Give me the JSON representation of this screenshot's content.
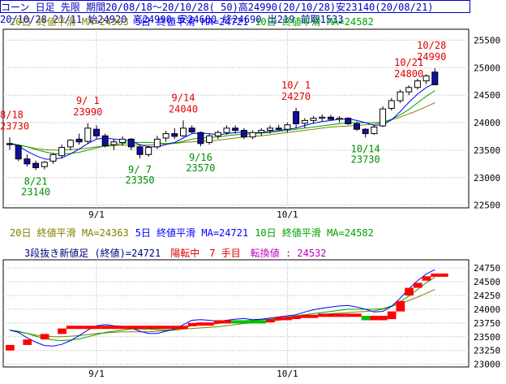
{
  "header": {
    "line1": "コーン 日足 先限 期間20/08/18～20/10/28( 50)高24990(20/10/28)安23140(20/08/21)",
    "line2": "20/10/28 21/11 始24920 高24990 安24680 終24690 出219 前取1533"
  },
  "colors": {
    "up": "#ffffff",
    "down": "#1010a0",
    "ma20": "#808000",
    "ma5": "#0000ff",
    "ma10": "#00a000",
    "annotation_high": "#e00000",
    "annotation_low": "#009000",
    "frame": "#000000",
    "brick_up": "#ff0000",
    "brick_down": "#00c000",
    "brick_flat": "#ff0000"
  },
  "chart_data": [
    {
      "type": "candlestick",
      "legend": [
        {
          "label": "20日 終値平滑 MA=24363",
          "color": "#808000"
        },
        {
          "label": "5日 終値平滑 MA=24721",
          "color": "#0000ff"
        },
        {
          "label": "10日 終値平滑 MA=24582",
          "color": "#00a000"
        }
      ],
      "x_ticks": [
        {
          "index": 10,
          "label": "9/1"
        },
        {
          "index": 32,
          "label": "10/1"
        }
      ],
      "y_ticks": [
        22500,
        23000,
        23500,
        24000,
        24500,
        25000,
        25500
      ],
      "ylim": [
        22450,
        25700
      ],
      "grid": true,
      "ohlc": [
        [
          23620,
          23730,
          23510,
          23600
        ],
        [
          23580,
          23600,
          23300,
          23340
        ],
        [
          23340,
          23420,
          23200,
          23250
        ],
        [
          23260,
          23310,
          23140,
          23180
        ],
        [
          23200,
          23300,
          23150,
          23280
        ],
        [
          23300,
          23450,
          23250,
          23420
        ],
        [
          23400,
          23600,
          23350,
          23550
        ],
        [
          23560,
          23700,
          23500,
          23680
        ],
        [
          23700,
          23800,
          23600,
          23650
        ],
        [
          23660,
          23990,
          23620,
          23900
        ],
        [
          23880,
          23950,
          23700,
          23760
        ],
        [
          23760,
          23800,
          23550,
          23580
        ],
        [
          23600,
          23700,
          23500,
          23650
        ],
        [
          23640,
          23750,
          23580,
          23700
        ],
        [
          23700,
          23720,
          23500,
          23560
        ],
        [
          23560,
          23600,
          23350,
          23420
        ],
        [
          23420,
          23580,
          23380,
          23550
        ],
        [
          23560,
          23760,
          23520,
          23700
        ],
        [
          23720,
          23850,
          23650,
          23800
        ],
        [
          23800,
          23900,
          23700,
          23750
        ],
        [
          23760,
          24040,
          23740,
          23900
        ],
        [
          23900,
          23950,
          23800,
          23830
        ],
        [
          23820,
          23840,
          23570,
          23620
        ],
        [
          23640,
          23800,
          23600,
          23760
        ],
        [
          23760,
          23860,
          23700,
          23820
        ],
        [
          23820,
          23950,
          23780,
          23900
        ],
        [
          23900,
          23950,
          23800,
          23860
        ],
        [
          23860,
          23900,
          23700,
          23740
        ],
        [
          23740,
          23860,
          23700,
          23820
        ],
        [
          23820,
          23900,
          23760,
          23860
        ],
        [
          23860,
          23950,
          23800,
          23900
        ],
        [
          23900,
          23960,
          23860,
          23880
        ],
        [
          23880,
          24000,
          23820,
          23960
        ],
        [
          24200,
          24270,
          23900,
          23980
        ],
        [
          23990,
          24080,
          23900,
          24040
        ],
        [
          24040,
          24120,
          23980,
          24080
        ],
        [
          24080,
          24150,
          24020,
          24100
        ],
        [
          24100,
          24140,
          24040,
          24060
        ],
        [
          24060,
          24120,
          24000,
          24080
        ],
        [
          24080,
          24100,
          23960,
          23980
        ],
        [
          23980,
          24020,
          23850,
          23880
        ],
        [
          23880,
          23900,
          23730,
          23800
        ],
        [
          23800,
          23950,
          23780,
          23920
        ],
        [
          23940,
          24300,
          23920,
          24250
        ],
        [
          24260,
          24450,
          24220,
          24400
        ],
        [
          24400,
          24600,
          24360,
          24560
        ],
        [
          24560,
          24680,
          24500,
          24640
        ],
        [
          24640,
          24800,
          24600,
          24760
        ],
        [
          24760,
          24880,
          24700,
          24850
        ],
        [
          24920,
          24990,
          24680,
          24690
        ]
      ],
      "ma20": [
        23620,
        23590,
        23560,
        23530,
        23510,
        23500,
        23500,
        23510,
        23520,
        23540,
        23560,
        23570,
        23580,
        23590,
        23590,
        23590,
        23590,
        23600,
        23610,
        23620,
        23640,
        23650,
        23660,
        23670,
        23680,
        23700,
        23720,
        23740,
        23750,
        23760,
        23780,
        23800,
        23820,
        23840,
        23860,
        23880,
        23900,
        23920,
        23930,
        23940,
        23950,
        23960,
        23970,
        24000,
        24050,
        24100,
        24160,
        24220,
        24290,
        24363
      ],
      "ma5": [
        23620,
        23580,
        23480,
        23400,
        23340,
        23330,
        23360,
        23430,
        23520,
        23620,
        23700,
        23720,
        23700,
        23690,
        23660,
        23600,
        23560,
        23560,
        23600,
        23640,
        23720,
        23800,
        23810,
        23800,
        23780,
        23800,
        23820,
        23830,
        23810,
        23820,
        23840,
        23860,
        23880,
        23900,
        23950,
        23990,
        24020,
        24040,
        24060,
        24070,
        24040,
        24000,
        23950,
        23960,
        24050,
        24200,
        24370,
        24520,
        24640,
        24721
      ],
      "ma10": [
        23620,
        23600,
        23560,
        23510,
        23470,
        23440,
        23430,
        23440,
        23460,
        23500,
        23540,
        23580,
        23600,
        23620,
        23640,
        23640,
        23640,
        23630,
        23620,
        23630,
        23660,
        23700,
        23720,
        23730,
        23740,
        23760,
        23780,
        23790,
        23800,
        23810,
        23820,
        23840,
        23860,
        23880,
        23900,
        23920,
        23940,
        23960,
        23980,
        24000,
        24000,
        24000,
        24000,
        24010,
        24060,
        24140,
        24240,
        24360,
        24480,
        24582
      ],
      "annotations": [
        {
          "index": 0,
          "date": "8/18",
          "value": "23730",
          "kind": "high"
        },
        {
          "index": 3,
          "date": "8/21",
          "value": "23140",
          "kind": "low"
        },
        {
          "index": 9,
          "date": "9/ 1",
          "value": "23990",
          "kind": "high"
        },
        {
          "index": 15,
          "date": "9/ 7",
          "value": "23350",
          "kind": "low"
        },
        {
          "index": 20,
          "date": "9/14",
          "value": "24040",
          "kind": "high"
        },
        {
          "index": 22,
          "date": "9/16",
          "value": "23570",
          "kind": "low"
        },
        {
          "index": 33,
          "date": "10/ 1",
          "value": "24270",
          "kind": "high"
        },
        {
          "index": 41,
          "date": "10/14",
          "value": "23730",
          "kind": "low"
        },
        {
          "index": 46,
          "date": "10/21",
          "value": "24800",
          "kind": "high"
        },
        {
          "index": 49,
          "date": "10/28",
          "value": "24990",
          "kind": "high"
        }
      ]
    },
    {
      "type": "three-line-break",
      "legend": [
        {
          "label": "20日 終値平滑 MA=24363",
          "color": "#808000"
        },
        {
          "label": "5日 終値平滑 MA=24721",
          "color": "#0000ff"
        },
        {
          "label": "10日 終値平滑 MA=24582",
          "color": "#00a000"
        }
      ],
      "info_parts": [
        {
          "text": "3段抜き新値足 (終値)=24721",
          "color": "#000080"
        },
        {
          "text": "陽転中",
          "color": "#e00000"
        },
        {
          "text": "7 手目",
          "color": "#e00000"
        },
        {
          "text": "転換値 : 24532",
          "color": "#c000c0"
        }
      ],
      "x_ticks": [
        {
          "index": 10,
          "label": "9/1"
        },
        {
          "index": 32,
          "label": "10/1"
        }
      ],
      "y_ticks": [
        23000,
        23250,
        23500,
        23750,
        24000,
        24250,
        24500,
        24750
      ],
      "ylim": [
        22950,
        24900
      ],
      "grid": true,
      "bricks": [
        [
          0,
          23350,
          23250,
          "up"
        ],
        [
          2,
          23450,
          23350,
          "up"
        ],
        [
          4,
          23550,
          23450,
          "up"
        ],
        [
          6,
          23650,
          23550,
          "up"
        ],
        [
          7,
          23700,
          23650,
          "up"
        ],
        [
          8,
          23700,
          23660,
          "flat"
        ],
        [
          9,
          23700,
          23660,
          "flat"
        ],
        [
          10,
          23700,
          23660,
          "flat"
        ],
        [
          11,
          23700,
          23660,
          "flat"
        ],
        [
          12,
          23700,
          23660,
          "flat"
        ],
        [
          13,
          23700,
          23660,
          "flat"
        ],
        [
          14,
          23700,
          23660,
          "flat"
        ],
        [
          15,
          23700,
          23660,
          "flat"
        ],
        [
          16,
          23700,
          23660,
          "flat"
        ],
        [
          17,
          23700,
          23660,
          "flat"
        ],
        [
          18,
          23700,
          23660,
          "flat"
        ],
        [
          19,
          23700,
          23660,
          "flat"
        ],
        [
          20,
          23700,
          23660,
          "flat"
        ],
        [
          21,
          23750,
          23700,
          "up"
        ],
        [
          22,
          23760,
          23720,
          "flat"
        ],
        [
          23,
          23760,
          23720,
          "flat"
        ],
        [
          24,
          23800,
          23760,
          "up"
        ],
        [
          25,
          23800,
          23760,
          "flat"
        ],
        [
          26,
          23800,
          23760,
          "down"
        ],
        [
          27,
          23800,
          23760,
          "down"
        ],
        [
          28,
          23800,
          23760,
          "down"
        ],
        [
          29,
          23800,
          23760,
          "down"
        ],
        [
          30,
          23820,
          23790,
          "up"
        ],
        [
          31,
          23860,
          23820,
          "up"
        ],
        [
          32,
          23860,
          23830,
          "flat"
        ],
        [
          33,
          23880,
          23850,
          "up"
        ],
        [
          34,
          23900,
          23870,
          "flat"
        ],
        [
          35,
          23900,
          23870,
          "flat"
        ],
        [
          36,
          23920,
          23890,
          "up"
        ],
        [
          37,
          23920,
          23890,
          "flat"
        ],
        [
          38,
          23920,
          23880,
          "flat"
        ],
        [
          39,
          23920,
          23880,
          "flat"
        ],
        [
          40,
          23920,
          23880,
          "flat"
        ],
        [
          41,
          23880,
          23800,
          "down"
        ],
        [
          42,
          23880,
          23800,
          "flat"
        ],
        [
          43,
          23880,
          23800,
          "flat"
        ],
        [
          44,
          23960,
          23820,
          "up"
        ],
        [
          45,
          24150,
          23960,
          "up"
        ],
        [
          46,
          24390,
          24250,
          "up"
        ],
        [
          47,
          24480,
          24390,
          "up"
        ],
        [
          48,
          24600,
          24520,
          "up"
        ],
        [
          49,
          24650,
          24600,
          "up"
        ],
        [
          50,
          24650,
          24600,
          "up"
        ]
      ]
    }
  ]
}
